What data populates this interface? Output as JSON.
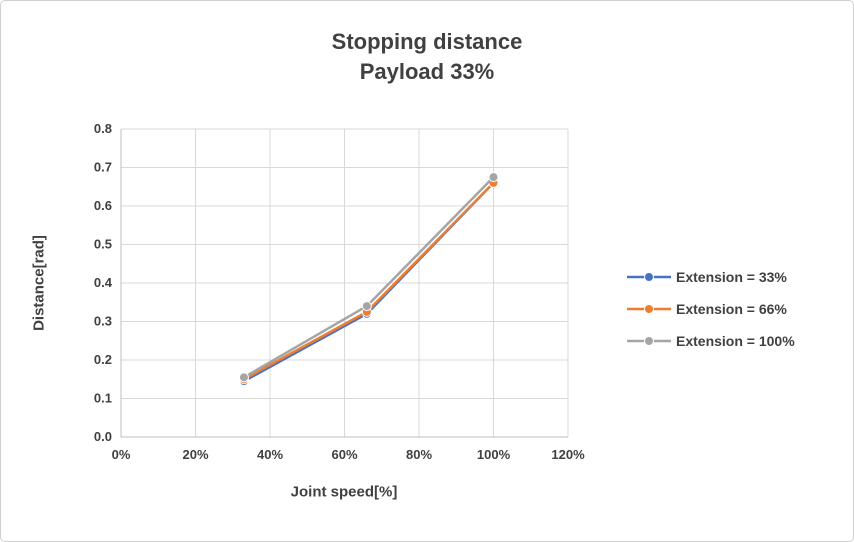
{
  "chart": {
    "title_line1": "Stopping distance",
    "title_line2": "Payload 33%",
    "xlabel": "Joint speed[%]",
    "ylabel": "Distance[rad]"
  },
  "chart_data": {
    "type": "line",
    "title": "Stopping distance Payload 33%",
    "xlabel": "Joint speed[%]",
    "ylabel": "Distance[rad]",
    "xlim": [
      0,
      120
    ],
    "ylim": [
      0,
      0.8
    ],
    "grid": true,
    "legend_position": "right",
    "x_tick_values": [
      0,
      20,
      40,
      60,
      80,
      100,
      120
    ],
    "x_tick_labels": [
      "0%",
      "20%",
      "40%",
      "60%",
      "80%",
      "100%",
      "120%"
    ],
    "y_tick_labels": [
      "0.0",
      "0.1",
      "0.2",
      "0.3",
      "0.4",
      "0.5",
      "0.6",
      "0.7",
      "0.8"
    ],
    "x": [
      33,
      66,
      100
    ],
    "series": [
      {
        "name": "Extension = 33%",
        "color": "#4472C4",
        "values": [
          0.145,
          0.32,
          0.66
        ]
      },
      {
        "name": "Extension = 66%",
        "color": "#ED7D31",
        "values": [
          0.15,
          0.325,
          0.66
        ]
      },
      {
        "name": "Extension = 100%",
        "color": "#A5A5A5",
        "values": [
          0.155,
          0.34,
          0.675
        ]
      }
    ],
    "colors": {
      "grid": "#d9d9d9",
      "axis": "#bfbfbf",
      "text": "#404040"
    }
  }
}
